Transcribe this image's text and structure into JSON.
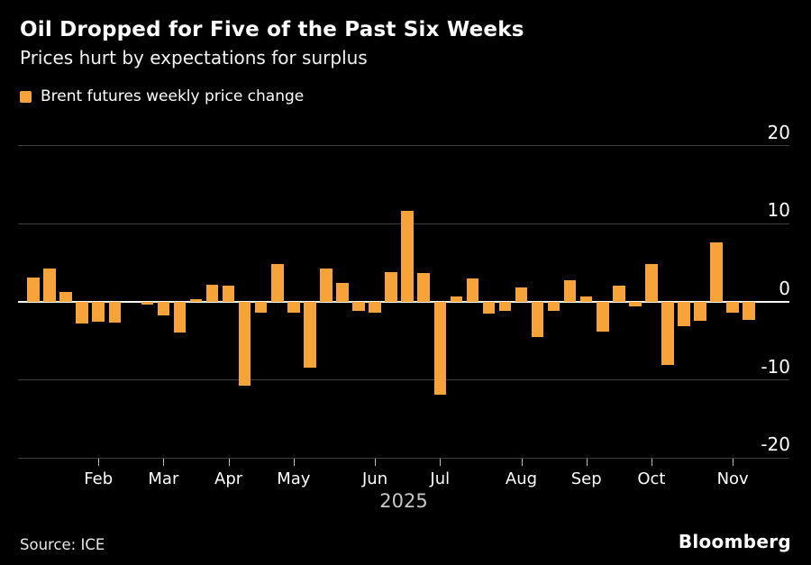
{
  "header": {
    "title": "Oil Dropped for Five of the Past Six Weeks",
    "subtitle": "Prices hurt by expectations for surplus"
  },
  "legend": {
    "label": "Brent futures weekly price change"
  },
  "footer": {
    "source": "Source: ICE",
    "brand": "Bloomberg"
  },
  "colors": {
    "background": "#000000",
    "bar": "#f6a33a",
    "gridline": "#3f3f3f",
    "zero_line": "#f5f5f5",
    "text": "#ffffff",
    "muted_text": "#c8c8c8"
  },
  "chart_data": {
    "type": "bar",
    "title": "Oil Dropped for Five of the Past Six Weeks",
    "subtitle": "Prices hurt by expectations for surplus",
    "series_name": "Brent futures weekly price change",
    "xlabel": "",
    "ylabel": "",
    "ylim": [
      -20,
      20
    ],
    "y_ticks": [
      20,
      10,
      0,
      -10,
      -20
    ],
    "grid": true,
    "legend_position": "top-left",
    "x_year_label": "2025",
    "x_unit": "weeks, Jan-Nov 2025",
    "month_ticks": [
      {
        "label": "Feb",
        "week_index": 4
      },
      {
        "label": "Mar",
        "week_index": 8
      },
      {
        "label": "Apr",
        "week_index": 12
      },
      {
        "label": "May",
        "week_index": 16
      },
      {
        "label": "Jun",
        "week_index": 21
      },
      {
        "label": "Jul",
        "week_index": 25
      },
      {
        "label": "Aug",
        "week_index": 30
      },
      {
        "label": "Sep",
        "week_index": 34
      },
      {
        "label": "Oct",
        "week_index": 38
      },
      {
        "label": "Nov",
        "week_index": 43
      }
    ],
    "values": [
      3.1,
      4.3,
      1.3,
      -2.8,
      -2.5,
      -2.7,
      0,
      -0.4,
      -1.7,
      -3.9,
      0.4,
      2.2,
      2.1,
      -10.7,
      -1.4,
      4.9,
      -1.4,
      -8.4,
      4.3,
      2.4,
      -1.2,
      -1.4,
      3.8,
      11.6,
      3.7,
      -11.9,
      0.7,
      3.0,
      -1.5,
      -1.1,
      1.8,
      -4.5,
      -1.2,
      2.8,
      0.7,
      -3.8,
      2.1,
      -0.6,
      4.9,
      -8.1,
      -3.1,
      -2.4,
      7.6,
      -1.4,
      -2.3
    ]
  }
}
